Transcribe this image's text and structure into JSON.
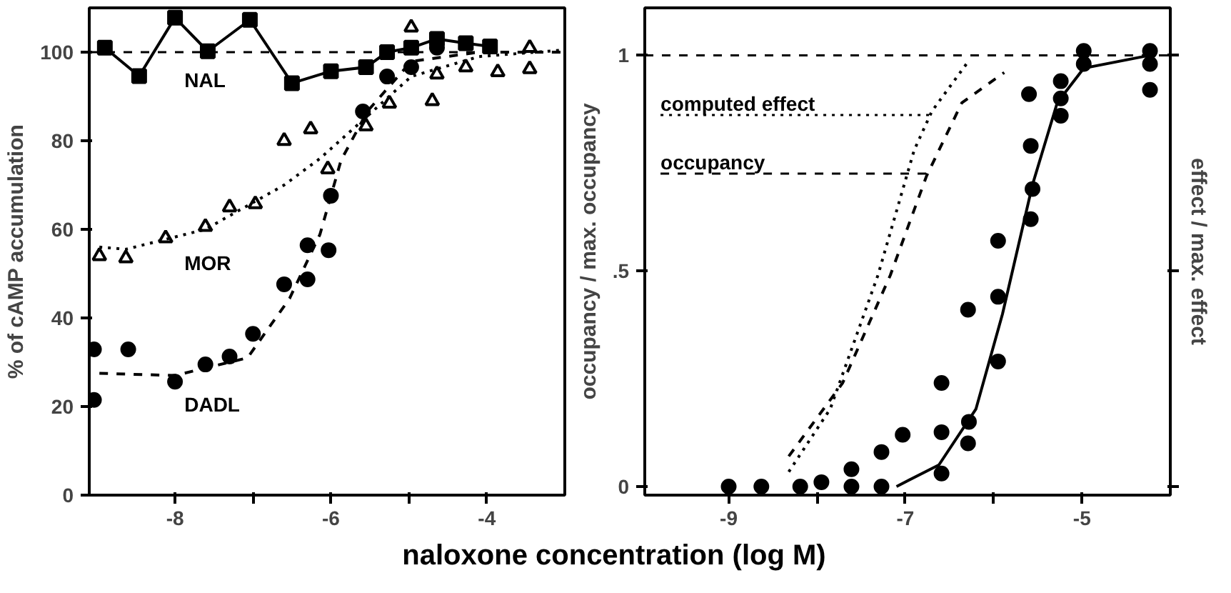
{
  "chart_data": [
    {
      "type": "line",
      "ylabel": "% of cAMP accumulation",
      "xlabel": "naloxone concentration (log M)",
      "xlim": [
        -9.1,
        -3.0
      ],
      "ylim": [
        0,
        110
      ],
      "xticks": [
        {
          "value": -8,
          "label": "-8"
        },
        {
          "value": -7,
          "label": null
        },
        {
          "value": -6,
          "label": "-6"
        },
        {
          "value": -5,
          "label": null
        },
        {
          "value": -4,
          "label": "-4"
        }
      ],
      "yticks": [
        0,
        20,
        40,
        60,
        80,
        100
      ],
      "grid": false,
      "ref_lines": [
        {
          "axis": "y",
          "value": 100,
          "line_style": "dashed",
          "color": "#000000"
        }
      ],
      "series": [
        {
          "name": "NAL",
          "color": "#000000",
          "marker": "square",
          "line_style": "solid",
          "x": [
            -8.9,
            -8.46,
            -8.0,
            -7.58,
            -7.04,
            -6.5,
            -6.0,
            -5.55,
            -5.28,
            -4.97,
            -4.64,
            -4.27,
            -3.96
          ],
          "values": [
            101,
            94.6,
            107.8,
            100.2,
            107.3,
            93,
            95.7,
            96.6,
            100,
            101,
            103,
            102,
            101.3
          ]
        },
        {
          "type": "scatter",
          "color": "#000000",
          "marker": "triangle",
          "x": [
            -8.97,
            -8.63,
            -8.12,
            -7.61,
            -7.3,
            -6.97,
            -6.6,
            -6.26,
            -6.04,
            -5.55,
            -5.25,
            -4.97,
            -4.7,
            -4.64,
            -4.27,
            -3.86,
            -3.45,
            -3.45
          ],
          "values": [
            54,
            53.5,
            58,
            60.6,
            65,
            65.7,
            80,
            82.6,
            73.6,
            83.3,
            88.4,
            105.6,
            89,
            95,
            96.6,
            95.5,
            96.2,
            101
          ]
        },
        {
          "name": "MOR",
          "color": "#000000",
          "marker": "none",
          "line_style": "dotted",
          "x": [
            -8.97,
            -8.63,
            -7.61,
            -6.6,
            -6.14,
            -5.6,
            -4.97,
            -4.1,
            -3.01
          ],
          "values": [
            56,
            55.5,
            60,
            70,
            76,
            84.5,
            94.5,
            99,
            100.5
          ]
        },
        {
          "type": "scatter",
          "color": "#000000",
          "marker": "circle",
          "x": [
            -9.04,
            -9.04,
            -8.6,
            -8.0,
            -7.61,
            -7.3,
            -7.0,
            -6.6,
            -6.3,
            -6.3,
            -6.03,
            -6.0,
            -5.59,
            -5.28,
            -4.97,
            -4.64
          ],
          "values": [
            32.9,
            21.5,
            32.9,
            25.6,
            29.5,
            31.3,
            36.4,
            47.6,
            48.7,
            56.4,
            55.3,
            67.6,
            86.6,
            94.5,
            96.6,
            101
          ]
        },
        {
          "name": "DADL",
          "color": "#000000",
          "marker": "none",
          "line_style": "dashed",
          "x": [
            -8.97,
            -8.0,
            -7.07,
            -6.53,
            -6.14,
            -5.87,
            -5.53,
            -4.97,
            -4.1,
            -3.01
          ],
          "values": [
            27.5,
            27,
            31,
            44.4,
            58.9,
            75.6,
            86.7,
            97.9,
            100,
            100
          ]
        }
      ]
    },
    {
      "type": "line",
      "ylabel": "occupancy / max. occupancy",
      "y2label": "effect / max. effect",
      "xlim": [
        -9.95,
        -4.0
      ],
      "ylim": [
        -0.02,
        1.11
      ],
      "xticks": [
        {
          "value": -9,
          "label": "-9"
        },
        {
          "value": -8,
          "label": null
        },
        {
          "value": -7,
          "label": "-7"
        },
        {
          "value": -6,
          "label": null
        },
        {
          "value": -5,
          "label": "-5"
        }
      ],
      "yticks": [
        {
          "value": 0,
          "label": "0"
        },
        {
          "value": 0.5,
          "label": ".5"
        },
        {
          "value": 1,
          "label": "1"
        }
      ],
      "grid": false,
      "ref_lines": [
        {
          "axis": "y",
          "value": 1,
          "line_style": "dashed",
          "color": "#000000"
        }
      ],
      "series": [
        {
          "name": "computed effect",
          "color": "#000000",
          "marker": "none",
          "line_style": "dotted",
          "x": [
            -8.32,
            -7.85,
            -7.31,
            -6.9,
            -6.7,
            -6.29
          ],
          "values": [
            0.034,
            0.18,
            0.49,
            0.78,
            0.87,
            0.985
          ]
        },
        {
          "name": "occupancy",
          "color": "#000000",
          "marker": "none",
          "line_style": "dashed",
          "x": [
            -8.32,
            -7.71,
            -7.17,
            -6.76,
            -6.36,
            -5.88
          ],
          "values": [
            0.07,
            0.24,
            0.49,
            0.72,
            0.89,
            0.96
          ]
        },
        {
          "type": "scatter",
          "color": "#000000",
          "marker": "circle",
          "x": [
            -9.0,
            -8.63,
            -8.19,
            -7.95,
            -7.61,
            -7.61,
            -7.27,
            -7.27,
            -7.03,
            -6.59,
            -6.59,
            -6.59,
            -6.29,
            -6.29,
            -6.28,
            -5.95,
            -5.95,
            -5.95,
            -5.58,
            -5.56,
            -5.58,
            -5.6,
            -5.24,
            -5.24,
            -5.24,
            -4.98,
            -4.98,
            -4.23,
            -4.23,
            -4.23
          ],
          "values": [
            0,
            0,
            0,
            0.01,
            0.04,
            0,
            0.08,
            0,
            0.12,
            0.126,
            0.24,
            0.03,
            0.1,
            0.41,
            0.15,
            0.29,
            0.44,
            0.57,
            0.62,
            0.69,
            0.79,
            0.91,
            0.86,
            0.9,
            0.94,
            0.98,
            1.01,
            0.92,
            0.98,
            1.01
          ]
        },
        {
          "color": "#000000",
          "marker": "none",
          "line_style": "solid",
          "x": [
            -7.1,
            -6.62,
            -6.2,
            -5.9,
            -5.56,
            -5.28,
            -4.98,
            -4.23
          ],
          "values": [
            0,
            0.05,
            0.18,
            0.4,
            0.7,
            0.89,
            0.97,
            1.0
          ]
        }
      ]
    }
  ]
}
